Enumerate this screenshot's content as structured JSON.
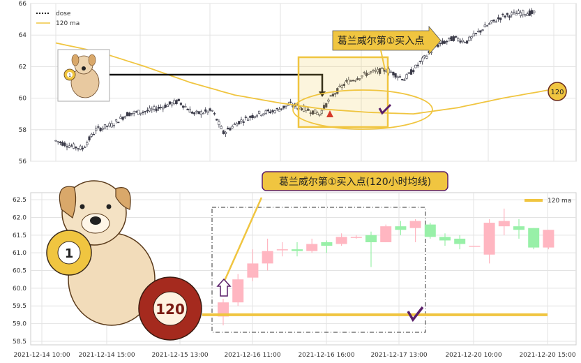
{
  "chart_data": [
    {
      "type": "candlestick",
      "title": "",
      "legend": [
        "dose",
        "120 ma"
      ],
      "legend_position": "top-left",
      "ylim": [
        56,
        66
      ],
      "y_ticks": [
        "56",
        "58",
        "60",
        "62",
        "64",
        "66"
      ],
      "grid": true,
      "annotation": {
        "label": "葛兰威尔第①买入点",
        "badge": "120"
      },
      "price_points": [
        [
          0,
          57.3
        ],
        [
          6,
          57.0
        ],
        [
          12,
          56.8
        ],
        [
          18,
          58.0
        ],
        [
          25,
          58.3
        ],
        [
          32,
          59.0
        ],
        [
          42,
          59.2
        ],
        [
          55,
          59.8
        ],
        [
          62,
          59.0
        ],
        [
          70,
          59.2
        ],
        [
          75,
          57.8
        ],
        [
          82,
          58.5
        ],
        [
          90,
          59.0
        ],
        [
          98,
          59.2
        ],
        [
          105,
          59.6
        ],
        [
          112,
          59.3
        ],
        [
          118,
          59.0
        ],
        [
          124,
          60.2
        ],
        [
          130,
          61.0
        ],
        [
          140,
          61.6
        ],
        [
          148,
          61.8
        ],
        [
          152,
          61.5
        ],
        [
          156,
          61.2
        ],
        [
          160,
          61.8
        ],
        [
          170,
          63.3
        ],
        [
          178,
          63.8
        ],
        [
          184,
          63.6
        ],
        [
          192,
          64.5
        ],
        [
          200,
          65.2
        ],
        [
          208,
          65.4
        ],
        [
          214,
          65.4
        ]
      ],
      "ma_points": [
        [
          0,
          63.5
        ],
        [
          20,
          62.9
        ],
        [
          40,
          62.0
        ],
        [
          60,
          61.0
        ],
        [
          80,
          60.2
        ],
        [
          100,
          59.7
        ],
        [
          120,
          59.3
        ],
        [
          140,
          59.1
        ],
        [
          160,
          59.0
        ],
        [
          180,
          59.4
        ],
        [
          200,
          60.0
        ],
        [
          220,
          60.5
        ]
      ],
      "x_total": 220
    },
    {
      "type": "candlestick",
      "title": "",
      "legend": [
        "120 ma"
      ],
      "legend_position": "top-right",
      "ylim": [
        58.4,
        62.7
      ],
      "y_ticks": [
        "58.5",
        "59.0",
        "59.5",
        "60.0",
        "60.5",
        "61.0",
        "61.5",
        "62.0",
        "62.5"
      ],
      "x_ticks": [
        "2021-12-14 10:00",
        "2021-12-14 15:00",
        "2021-12-15 13:00",
        "2021-12-16 11:00",
        "2021-12-16 16:00",
        "2021-12-17 13:00",
        "2021-12-20 10:00",
        "2021-12-20 15:00"
      ],
      "grid": true,
      "annotation": {
        "label": "葛兰威尔第①买入点(120小时均线)",
        "badge": "120"
      },
      "ma_value": 59.25,
      "candles": [
        {
          "o": 59.2,
          "c": 59.6,
          "h": 59.7,
          "l": 58.95
        },
        {
          "o": 59.6,
          "c": 60.25,
          "h": 60.4,
          "l": 59.5
        },
        {
          "o": 60.3,
          "c": 60.7,
          "h": 61.1,
          "l": 60.2
        },
        {
          "o": 60.7,
          "c": 61.05,
          "h": 61.4,
          "l": 60.5
        },
        {
          "o": 61.1,
          "c": 61.1,
          "h": 61.3,
          "l": 60.9
        },
        {
          "o": 61.1,
          "c": 61.05,
          "h": 61.3,
          "l": 60.9
        },
        {
          "o": 61.05,
          "c": 61.25,
          "h": 61.4,
          "l": 61.0
        },
        {
          "o": 61.3,
          "c": 61.2,
          "h": 61.35,
          "l": 61.0
        },
        {
          "o": 61.25,
          "c": 61.45,
          "h": 61.55,
          "l": 61.2
        },
        {
          "o": 61.45,
          "c": 61.45,
          "h": 61.5,
          "l": 61.4
        },
        {
          "o": 61.5,
          "c": 61.3,
          "h": 61.6,
          "l": 60.6
        },
        {
          "o": 61.3,
          "c": 61.75,
          "h": 61.8,
          "l": 61.3
        },
        {
          "o": 61.75,
          "c": 61.65,
          "h": 61.9,
          "l": 61.5
        },
        {
          "o": 61.7,
          "c": 61.9,
          "h": 61.95,
          "l": 61.3
        },
        {
          "o": 61.8,
          "c": 61.45,
          "h": 61.85,
          "l": 61.4
        },
        {
          "o": 61.45,
          "c": 61.35,
          "h": 61.55,
          "l": 61.2
        },
        {
          "o": 61.4,
          "c": 61.25,
          "h": 61.5,
          "l": 61.1
        },
        {
          "o": 61.2,
          "c": 61.2,
          "h": 61.2,
          "l": 61.2
        },
        {
          "o": 60.95,
          "c": 61.85,
          "h": 61.95,
          "l": 60.7
        },
        {
          "o": 61.75,
          "c": 61.9,
          "h": 62.25,
          "l": 61.5
        },
        {
          "o": 61.75,
          "c": 61.65,
          "h": 61.95,
          "l": 61.4
        },
        {
          "o": 61.7,
          "c": 61.15,
          "h": 61.7,
          "l": 61.1
        },
        {
          "o": 61.15,
          "c": 61.65,
          "h": 61.65,
          "l": 61.1
        }
      ]
    }
  ],
  "colors": {
    "ma": "#f0c540",
    "bear": "#4a4a5a",
    "bull_light": "#ffb6c1",
    "bear_light": "#98f0a8",
    "frame": "#333"
  }
}
